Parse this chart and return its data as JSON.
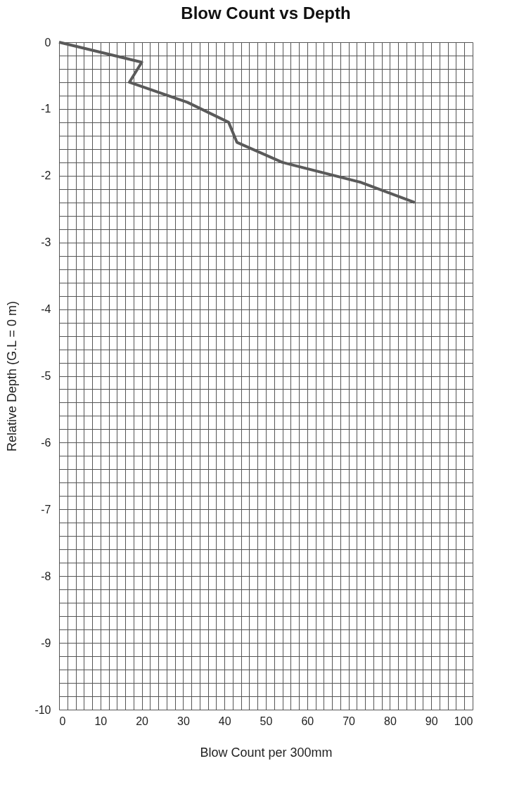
{
  "chart_data": {
    "type": "line",
    "title": "Blow Count vs Depth",
    "xlabel": "Blow Count per 300mm",
    "ylabel": "Relative Depth (G.L = 0 m)",
    "x": [
      0,
      20,
      17,
      31,
      41,
      43,
      54,
      73,
      86
    ],
    "series": [
      {
        "color": "#5a5a5a",
        "values": [
          0,
          -0.3,
          -0.6,
          -0.9,
          -1.2,
          -1.5,
          -1.8,
          -2.1,
          -2.4
        ]
      }
    ],
    "xlim": [
      0,
      100
    ],
    "xticks": [
      0,
      10,
      20,
      30,
      40,
      50,
      60,
      70,
      80,
      90,
      100
    ],
    "ylim": [
      -10,
      0
    ],
    "yticks": [
      0,
      -1,
      -2,
      -3,
      -4,
      -5,
      -6,
      -7,
      -8,
      -9,
      -10
    ],
    "grid": true,
    "marker": "none",
    "line_style": "solid"
  }
}
